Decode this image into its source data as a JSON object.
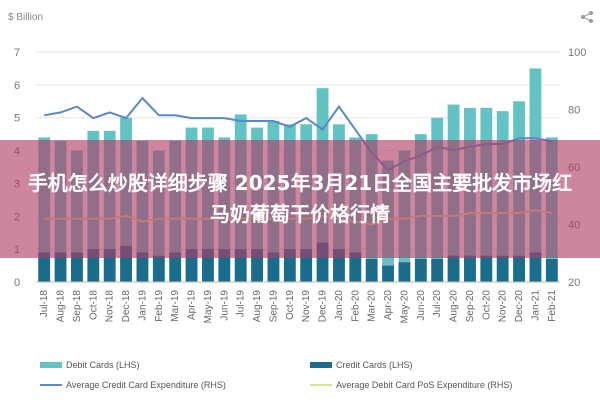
{
  "unit_label": "$ Billion",
  "banner_text": "手机怎么炒股详细步骤 2025年3月21日全国主要批发市场红马奶葡萄干价格行情",
  "colors": {
    "debit_bar": "#63c2c2",
    "credit_bar": "#1b6d8c",
    "avg_credit_line": "#5b88c9",
    "avg_debit_line": "#d9e39a",
    "banner": "#b03c64"
  },
  "icons": {
    "share": "share-icon"
  },
  "chart_data": {
    "type": "bar",
    "categories": [
      "Jul-18",
      "Aug-18",
      "Sep-18",
      "Oct-18",
      "Nov-18",
      "Dec-18",
      "Jan-19",
      "Feb-19",
      "Mar-19",
      "Apr-19",
      "May-19",
      "Jun-19",
      "Jul-19",
      "Aug-19",
      "Sep-19",
      "Oct-19",
      "Nov-19",
      "Dec-19",
      "Jan-20",
      "Feb-20",
      "Mar-20",
      "Apr-20",
      "May-20",
      "Jun-20",
      "Jul-20",
      "Aug-20",
      "Sep-20",
      "Oct-20",
      "Nov-20",
      "Dec-20",
      "Jan-21",
      "Feb-21"
    ],
    "ylim_left": [
      0,
      7
    ],
    "ylim_right": [
      20,
      100
    ],
    "yticks_left": [
      "0",
      "1",
      "2",
      "3",
      "4",
      "5",
      "6",
      "7"
    ],
    "yticks_right": [
      "20",
      "40",
      "60",
      "80",
      "100"
    ],
    "series": [
      {
        "name": "Debit Cards (LHS)",
        "type": "bar",
        "axis": "left",
        "values": [
          4.4,
          4.3,
          4.0,
          4.6,
          4.6,
          5.0,
          4.3,
          4.0,
          4.3,
          4.7,
          4.7,
          4.4,
          5.1,
          4.7,
          4.9,
          4.8,
          4.8,
          5.9,
          4.8,
          4.4,
          4.5,
          3.7,
          4.0,
          4.5,
          5.0,
          5.4,
          5.3,
          5.3,
          5.2,
          5.5,
          6.5,
          4.4
        ]
      },
      {
        "name": "Credit Cards (LHS)",
        "type": "bar",
        "axis": "left",
        "values": [
          0.9,
          0.9,
          0.9,
          1.0,
          1.0,
          1.1,
          0.9,
          0.8,
          0.9,
          1.0,
          1.0,
          1.0,
          1.0,
          1.0,
          0.9,
          1.0,
          1.0,
          1.2,
          1.0,
          0.9,
          0.7,
          0.5,
          0.6,
          0.7,
          0.7,
          0.8,
          0.8,
          0.8,
          0.8,
          0.8,
          0.9,
          0.7
        ]
      },
      {
        "name": "Average Credit Card Expenditure (RHS)",
        "type": "line",
        "axis": "right",
        "values": [
          78,
          79,
          81,
          77,
          79,
          77,
          84,
          78,
          78,
          77,
          77,
          77,
          76,
          76,
          76,
          74,
          77,
          73,
          81,
          73,
          65,
          59,
          62,
          64,
          67,
          66,
          67,
          68,
          68,
          70,
          70,
          69
        ]
      },
      {
        "name": "Average Debit Card PoS Expenditure (RHS)",
        "type": "line",
        "axis": "right",
        "values": [
          42,
          42,
          42,
          42,
          42,
          43,
          41,
          42,
          42,
          42,
          42,
          42,
          42,
          42,
          42,
          42,
          42,
          43,
          42,
          41,
          40,
          42,
          42,
          43,
          43,
          43,
          44,
          44,
          44,
          44,
          45,
          44
        ]
      }
    ]
  }
}
